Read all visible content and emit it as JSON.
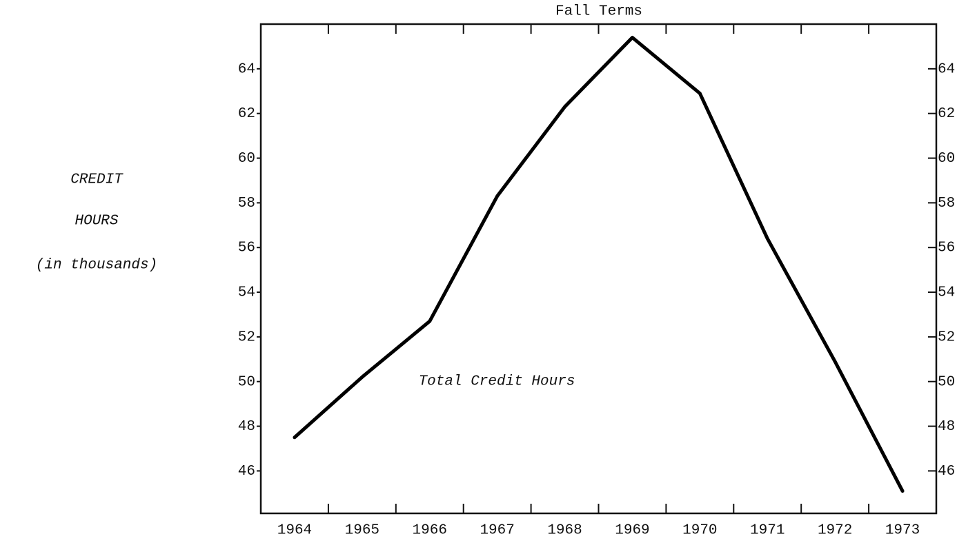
{
  "chart_data": {
    "type": "line",
    "title": "Fall Terms",
    "ylabel": [
      "CREDIT",
      "HOURS",
      "(in thousands)"
    ],
    "annotation": "Total Credit Hours",
    "categories": [
      "1964",
      "1965",
      "1966",
      "1967",
      "1968",
      "1969",
      "1970",
      "1971",
      "1972",
      "1973"
    ],
    "values": [
      47.5,
      50.2,
      52.7,
      58.3,
      62.3,
      65.4,
      62.9,
      56.4,
      50.9,
      45.1
    ],
    "color": "#000000",
    "ylim": [
      44.1,
      66
    ],
    "yticks": [
      46,
      48,
      50,
      52,
      54,
      56,
      58,
      60,
      62,
      64
    ],
    "y2lim": [
      44.1,
      66
    ],
    "y2ticks": [
      46,
      48,
      50,
      52,
      54,
      56,
      58,
      60,
      62,
      64
    ]
  }
}
